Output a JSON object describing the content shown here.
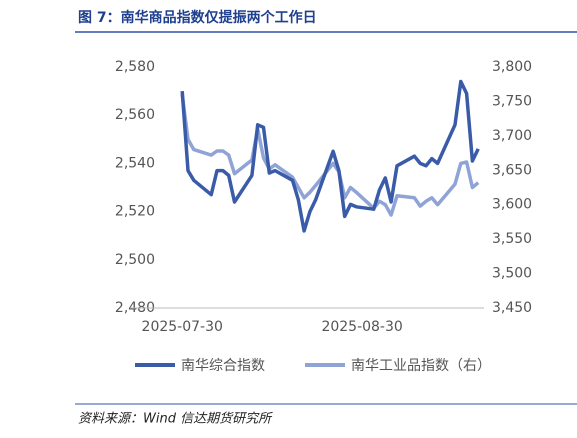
{
  "title": "图 7：南华商品指数仅提振两个工作日",
  "source": "资料来源：Wind 信达期货研究所",
  "chart_data": {
    "type": "line",
    "x": [
      "2025-07-30",
      "2025-07-31",
      "2025-08-01",
      "2025-08-04",
      "2025-08-05",
      "2025-08-06",
      "2025-08-07",
      "2025-08-08",
      "2025-08-11",
      "2025-08-12",
      "2025-08-13",
      "2025-08-14",
      "2025-08-15",
      "2025-08-18",
      "2025-08-19",
      "2025-08-20",
      "2025-08-21",
      "2025-08-22",
      "2025-08-25",
      "2025-08-26",
      "2025-08-27",
      "2025-08-28",
      "2025-08-29",
      "2025-09-01",
      "2025-09-02",
      "2025-09-03",
      "2025-09-04",
      "2025-09-05",
      "2025-09-08",
      "2025-09-09",
      "2025-09-10",
      "2025-09-11",
      "2025-09-12",
      "2025-09-15",
      "2025-09-16",
      "2025-09-17",
      "2025-09-18",
      "2025-09-19"
    ],
    "xlim": [
      "2025-07-21",
      "2025-09-20"
    ],
    "xticks": [
      "2025-07-30",
      "2025-08-30"
    ],
    "ylim": [
      2480,
      2580
    ],
    "yticks": [
      {
        "value": 2480,
        "label": "2,480"
      },
      {
        "value": 2500,
        "label": "2,500"
      },
      {
        "value": 2520,
        "label": "2,520"
      },
      {
        "value": 2540,
        "label": "2,540"
      },
      {
        "value": 2560,
        "label": "2,560"
      },
      {
        "value": 2580,
        "label": "2,580"
      }
    ],
    "y2lim": [
      3450,
      3800
    ],
    "y2ticks": [
      {
        "value": 3450,
        "label": "3,450"
      },
      {
        "value": 3500,
        "label": "3,500"
      },
      {
        "value": 3550,
        "label": "3,550"
      },
      {
        "value": 3600,
        "label": "3,600"
      },
      {
        "value": 3650,
        "label": "3,650"
      },
      {
        "value": 3700,
        "label": "3,700"
      },
      {
        "value": 3750,
        "label": "3,750"
      },
      {
        "value": 3800,
        "label": "3,800"
      }
    ],
    "series": [
      {
        "name": "南华综合指数",
        "color": "#3a5ba8",
        "values": [
          2570,
          2537,
          2533,
          2527,
          2537,
          2537,
          2535,
          2524,
          2535,
          2556,
          2555,
          2536,
          2537,
          2533,
          2525,
          2512,
          2520,
          2525,
          2545,
          2537,
          2518,
          2523,
          2522,
          2521,
          2529,
          2534,
          2524,
          2539,
          2543,
          2540,
          2539,
          2542,
          2540,
          2556,
          2574,
          2569,
          2541,
          2546
        ]
      },
      {
        "name": "南华工业品指数（右）",
        "color": "#8fa3d6",
        "axis": "y2",
        "values": [
          3760,
          3695,
          3680,
          3672,
          3678,
          3678,
          3672,
          3645,
          3665,
          3710,
          3668,
          3652,
          3658,
          3640,
          3625,
          3610,
          3618,
          3628,
          3660,
          3648,
          3610,
          3625,
          3618,
          3595,
          3605,
          3600,
          3585,
          3613,
          3610,
          3598,
          3605,
          3610,
          3600,
          3630,
          3660,
          3662,
          3625,
          3632
        ]
      }
    ]
  }
}
